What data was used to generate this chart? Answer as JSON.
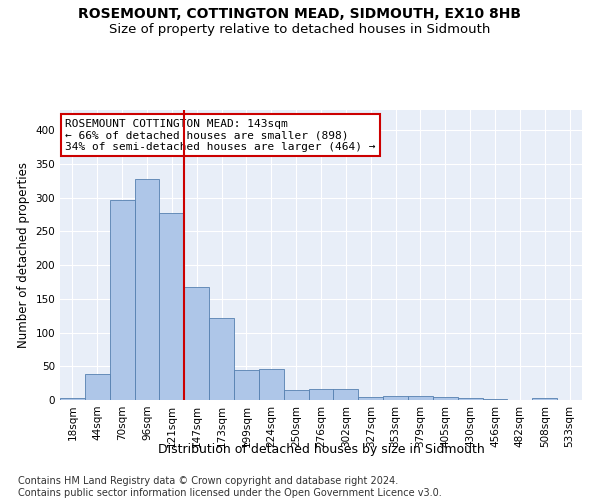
{
  "title": "ROSEMOUNT, COTTINGTON MEAD, SIDMOUTH, EX10 8HB",
  "subtitle": "Size of property relative to detached houses in Sidmouth",
  "xlabel": "Distribution of detached houses by size in Sidmouth",
  "ylabel": "Number of detached properties",
  "categories": [
    "18sqm",
    "44sqm",
    "70sqm",
    "96sqm",
    "121sqm",
    "147sqm",
    "173sqm",
    "199sqm",
    "224sqm",
    "250sqm",
    "276sqm",
    "302sqm",
    "327sqm",
    "353sqm",
    "379sqm",
    "405sqm",
    "430sqm",
    "456sqm",
    "482sqm",
    "508sqm",
    "533sqm"
  ],
  "values": [
    3,
    39,
    297,
    328,
    278,
    167,
    122,
    44,
    46,
    15,
    16,
    17,
    5,
    6,
    6,
    5,
    3,
    1,
    0,
    3,
    0
  ],
  "bar_color": "#aec6e8",
  "bar_edge_color": "#5580b0",
  "bar_edge_width": 0.6,
  "vline_x": 4.5,
  "vline_color": "#cc0000",
  "annotation_text": "ROSEMOUNT COTTINGTON MEAD: 143sqm\n← 66% of detached houses are smaller (898)\n34% of semi-detached houses are larger (464) →",
  "annotation_box_color": "#ffffff",
  "annotation_box_edge": "#cc0000",
  "ylim": [
    0,
    430
  ],
  "yticks": [
    0,
    50,
    100,
    150,
    200,
    250,
    300,
    350,
    400
  ],
  "background_color": "#e8eef8",
  "footer_line1": "Contains HM Land Registry data © Crown copyright and database right 2024.",
  "footer_line2": "Contains public sector information licensed under the Open Government Licence v3.0.",
  "title_fontsize": 10,
  "subtitle_fontsize": 9.5,
  "xlabel_fontsize": 9,
  "ylabel_fontsize": 8.5,
  "tick_fontsize": 7.5,
  "annot_fontsize": 8,
  "footer_fontsize": 7
}
